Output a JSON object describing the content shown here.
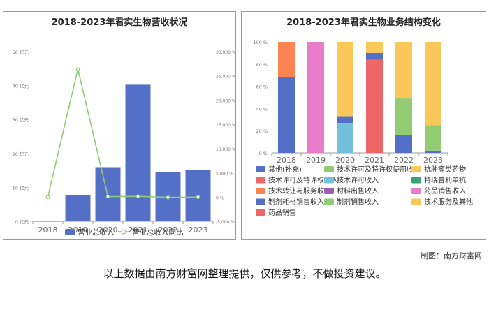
{
  "colors": {
    "bar_blue": "#5470c6",
    "line_green": "#91cc75",
    "axis_gray": "#999999",
    "grid_gray": "#e6e6e6"
  },
  "source_text": "制图：南方财富网",
  "disclaimer": "以上数据由南方财富网整理提供，仅供参考，不做投资建议。",
  "chart_data": [
    {
      "type": "bar",
      "title": "2018-2023年君实生物营收状况",
      "categories": [
        "2018",
        "2019",
        "2020",
        "2021",
        "2022",
        "2023"
      ],
      "series": [
        {
          "name": "营业总收入",
          "type": "bar",
          "axis": "left",
          "color": "#5470c6",
          "values": [
            0.0,
            7.75,
            15.95,
            40.25,
            14.53,
            15.03
          ]
        },
        {
          "name": "营业总收入同比",
          "type": "line",
          "axis": "right",
          "color": "#91cc75",
          "values": [
            0,
            26400,
            106,
            152,
            -64,
            3
          ]
        }
      ],
      "y_left": {
        "min": 0,
        "max": 50,
        "ticks": [
          0,
          10,
          20,
          30,
          40,
          50
        ],
        "tick_labels": [
          "0 亿元",
          "10 亿元",
          "20 亿元",
          "30 亿元",
          "40 亿元",
          "50 亿元"
        ]
      },
      "y_right": {
        "min": -5000,
        "max": 30000,
        "ticks": [
          -5000,
          0,
          5000,
          10000,
          15000,
          20000,
          25000,
          30000
        ],
        "tick_labels": [
          "-5,000 %",
          "0 %",
          "5,000 %",
          "10,000 %",
          "15,000 %",
          "20,000 %",
          "25,000 %",
          "30,000 %"
        ]
      },
      "legend": [
        "营业总收入",
        "营业总收入同比"
      ],
      "legend_position": "bottom",
      "grid": false
    },
    {
      "type": "bar",
      "stacked": true,
      "title": "2018-2023年君实生物业务结构变化",
      "categories": [
        "2018",
        "2019",
        "2020",
        "2021",
        "2022",
        "2023"
      ],
      "y": {
        "min": 0,
        "max": 100,
        "ticks": [
          0,
          20,
          40,
          60,
          80,
          100
        ],
        "tick_labels": [
          "0 %",
          "20 %",
          "40 %",
          "60 %",
          "80 %",
          "100 %"
        ]
      },
      "series": [
        {
          "name": "其他(补充)",
          "color": "#5470c6",
          "values": [
            68,
            0,
            0,
            0,
            0,
            0
          ]
        },
        {
          "name": "技术许可及特许权使用收入",
          "color": "#91cc75",
          "values": [
            0,
            0,
            0,
            0,
            0,
            0
          ]
        },
        {
          "name": "抗肿瘤类药物",
          "color": "#fac858",
          "values": [
            0,
            0,
            0,
            0,
            0,
            0
          ]
        },
        {
          "name": "技术许可及特许权收入",
          "color": "#ee6666",
          "values": [
            0,
            0,
            0,
            84,
            0,
            0
          ]
        },
        {
          "name": "技术许可收入",
          "color": "#73c0de",
          "values": [
            0,
            0,
            27,
            0,
            0,
            0
          ]
        },
        {
          "name": "特瑞普利单抗",
          "color": "#3ba272",
          "values": [
            0,
            0,
            0,
            0,
            0,
            0
          ]
        },
        {
          "name": "技术转让与服务收入",
          "color": "#fc8452",
          "values": [
            32,
            0,
            0,
            0,
            0,
            0
          ]
        },
        {
          "name": "材料出售收入",
          "color": "#9a60b4",
          "values": [
            0,
            0,
            0,
            0,
            0,
            0
          ]
        },
        {
          "name": "药品销售收入",
          "color": "#ea7ccc",
          "values": [
            0,
            100,
            0,
            0,
            0,
            0
          ]
        },
        {
          "name": "制剂耗材销售收入",
          "color": "#5470c6",
          "values": [
            0,
            0,
            6,
            6,
            16,
            2
          ]
        },
        {
          "name": "制剂销售收入",
          "color": "#91cc75",
          "values": [
            0,
            0,
            0,
            0,
            33,
            23
          ]
        },
        {
          "name": "技术服务及其他",
          "color": "#fac858",
          "values": [
            0,
            0,
            67,
            10,
            51,
            75
          ]
        },
        {
          "name": "药品销售",
          "color": "#ee6666",
          "values": [
            0,
            0,
            0,
            0,
            0,
            0
          ]
        }
      ],
      "legend_position": "bottom",
      "grid": false
    }
  ]
}
